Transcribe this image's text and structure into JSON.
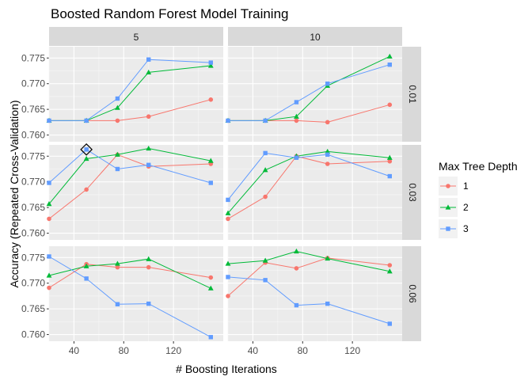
{
  "chart_data": {
    "type": "line",
    "title": "Boosted Random Forest Model Training",
    "xlabel": "# Boosting Iterations",
    "ylabel": "Accuracy (Repeated Cross-Validation)",
    "x_ticks": [
      40,
      80,
      120
    ],
    "y_ticks": [
      0.76,
      0.765,
      0.77,
      0.775
    ],
    "y_tick_labels": [
      "0.760",
      "0.765",
      "0.770",
      "0.775"
    ],
    "xlim": [
      20,
      160
    ],
    "ylim": [
      0.7587,
      0.7772
    ],
    "col_facet_labels": [
      "5",
      "10"
    ],
    "row_facet_labels": [
      "0.01",
      "0.03",
      "0.06"
    ],
    "legend": {
      "title": "Max Tree Depth",
      "position": "right",
      "entries": [
        {
          "label": "1",
          "color": "#F8766D",
          "shape": "circle"
        },
        {
          "label": "2",
          "color": "#00BA38",
          "shape": "triangle"
        },
        {
          "label": "3",
          "color": "#619CFF",
          "shape": "square"
        }
      ]
    },
    "x": [
      20,
      50,
      75,
      100,
      150
    ],
    "panels": [
      {
        "col": "5",
        "row": "0.01",
        "series": [
          {
            "name": "1",
            "values": [
              0.7628,
              0.7628,
              0.7628,
              0.7636,
              0.7669
            ]
          },
          {
            "name": "2",
            "values": [
              0.7628,
              0.7628,
              0.7653,
              0.7722,
              0.7735
            ]
          },
          {
            "name": "3",
            "values": [
              0.7628,
              0.7628,
              0.7671,
              0.7747,
              0.7741
            ]
          }
        ]
      },
      {
        "col": "10",
        "row": "0.01",
        "series": [
          {
            "name": "1",
            "values": [
              0.7628,
              0.7628,
              0.7628,
              0.7625,
              0.7659
            ]
          },
          {
            "name": "2",
            "values": [
              0.7628,
              0.7628,
              0.7636,
              0.7696,
              0.7753
            ]
          },
          {
            "name": "3",
            "values": [
              0.7628,
              0.7628,
              0.7664,
              0.77,
              0.7737
            ]
          }
        ]
      },
      {
        "col": "5",
        "row": "0.03",
        "series": [
          {
            "name": "1",
            "values": [
              0.7628,
              0.7685,
              0.7753,
              0.773,
              0.7735
            ]
          },
          {
            "name": "2",
            "values": [
              0.7657,
              0.7745,
              0.7753,
              0.7765,
              0.7741
            ]
          },
          {
            "name": "3",
            "values": [
              0.7698,
              0.7763,
              0.7725,
              0.7733,
              0.7698
            ]
          }
        ]
      },
      {
        "col": "10",
        "row": "0.03",
        "series": [
          {
            "name": "1",
            "values": [
              0.7628,
              0.7671,
              0.775,
              0.7735,
              0.774
            ]
          },
          {
            "name": "2",
            "values": [
              0.7639,
              0.7723,
              0.775,
              0.7759,
              0.7747
            ]
          },
          {
            "name": "3",
            "values": [
              0.7665,
              0.7756,
              0.7747,
              0.7753,
              0.7711
            ]
          }
        ]
      },
      {
        "col": "5",
        "row": "0.06",
        "series": [
          {
            "name": "1",
            "values": [
              0.7691,
              0.7737,
              0.7731,
              0.7731,
              0.7711
            ]
          },
          {
            "name": "2",
            "values": [
              0.7715,
              0.7733,
              0.7738,
              0.7747,
              0.769
            ]
          },
          {
            "name": "3",
            "values": [
              0.7752,
              0.7709,
              0.7659,
              0.766,
              0.7595
            ]
          }
        ]
      },
      {
        "col": "10",
        "row": "0.06",
        "series": [
          {
            "name": "1",
            "values": [
              0.7675,
              0.774,
              0.7729,
              0.7749,
              0.7735
            ]
          },
          {
            "name": "2",
            "values": [
              0.7738,
              0.7744,
              0.7762,
              0.7748,
              0.7723
            ]
          },
          {
            "name": "3",
            "values": [
              0.7712,
              0.7706,
              0.7657,
              0.766,
              0.7621
            ]
          }
        ]
      }
    ],
    "highlight": {
      "col": "5",
      "row": "0.03",
      "x": 50,
      "y": 0.7763,
      "marker": "diamond"
    }
  }
}
